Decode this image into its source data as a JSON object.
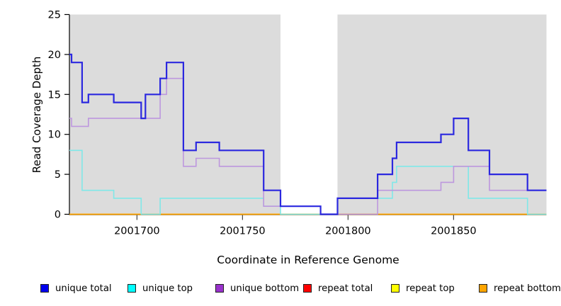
{
  "chart_data": {
    "type": "line",
    "subtype": "step",
    "title": "",
    "xlabel": "Coordinate in Reference Genome",
    "ylabel": "Read Coverage Depth",
    "xlim": [
      2001668,
      2001894
    ],
    "ylim": [
      0,
      25
    ],
    "xticks": [
      2001700,
      2001750,
      2001800,
      2001850
    ],
    "yticks": [
      0,
      5,
      10,
      15,
      20,
      25
    ],
    "grid": false,
    "legend_position": "bottom",
    "plot_bg": "#ffffff",
    "shaded_regions": [
      {
        "x0": 2001668,
        "x1": 2001768,
        "color": "#dcdcdc",
        "meaning": "unique region"
      },
      {
        "x0": 2001795,
        "x1": 2001894,
        "color": "#dcdcdc",
        "meaning": "unique region"
      }
    ],
    "series": [
      {
        "name": "unique total",
        "legend_color": "#0000ee",
        "line_color": "#2b28df",
        "line_width": 2.2,
        "steps": [
          [
            2001668,
            20
          ],
          [
            2001669,
            19
          ],
          [
            2001674,
            14
          ],
          [
            2001677,
            15
          ],
          [
            2001689,
            14
          ],
          [
            2001702,
            12
          ],
          [
            2001704,
            15
          ],
          [
            2001711,
            17
          ],
          [
            2001714,
            19
          ],
          [
            2001722,
            8
          ],
          [
            2001728,
            9
          ],
          [
            2001739,
            8
          ],
          [
            2001760,
            3
          ],
          [
            2001768,
            1
          ],
          [
            2001787,
            0
          ],
          [
            2001795,
            2
          ],
          [
            2001814,
            5
          ],
          [
            2001821,
            7
          ],
          [
            2001823,
            9
          ],
          [
            2001844,
            10
          ],
          [
            2001850,
            12
          ],
          [
            2001857,
            8
          ],
          [
            2001867,
            5
          ],
          [
            2001885,
            3
          ]
        ],
        "end_x": 2001894
      },
      {
        "name": "unique top",
        "legend_color": "#00ffff",
        "line_color": "#80e8e8",
        "line_width": 1.6,
        "steps": [
          [
            2001668,
            8
          ],
          [
            2001674,
            3
          ],
          [
            2001689,
            2
          ],
          [
            2001702,
            0
          ],
          [
            2001711,
            2
          ],
          [
            2001760,
            1
          ],
          [
            2001768,
            0
          ],
          [
            2001795,
            2
          ],
          [
            2001821,
            4
          ],
          [
            2001823,
            6
          ],
          [
            2001857,
            2
          ],
          [
            2001885,
            0
          ]
        ],
        "end_x": 2001894
      },
      {
        "name": "unique bottom",
        "legend_color": "#9932cc",
        "line_color": "#bd97de",
        "line_width": 1.6,
        "steps": [
          [
            2001668,
            12
          ],
          [
            2001669,
            11
          ],
          [
            2001677,
            12
          ],
          [
            2001711,
            15
          ],
          [
            2001714,
            17
          ],
          [
            2001722,
            6
          ],
          [
            2001728,
            7
          ],
          [
            2001739,
            6
          ],
          [
            2001760,
            1
          ],
          [
            2001787,
            0
          ],
          [
            2001814,
            3
          ],
          [
            2001844,
            4
          ],
          [
            2001850,
            6
          ],
          [
            2001867,
            3
          ]
        ],
        "end_x": 2001894
      },
      {
        "name": "repeat total",
        "legend_color": "#ff0000",
        "line_color": "#cc1111",
        "line_width": 1.2,
        "steps": [
          [
            2001668,
            0
          ]
        ],
        "end_x": 2001894
      },
      {
        "name": "repeat top",
        "legend_color": "#ffff00",
        "line_color": "#eeee00",
        "line_width": 1.2,
        "steps": [
          [
            2001668,
            0
          ]
        ],
        "end_x": 2001894
      },
      {
        "name": "repeat bottom",
        "legend_color": "#ffa500",
        "line_color": "#ffa500",
        "line_width": 1.8,
        "steps": [
          [
            2001668,
            0
          ]
        ],
        "end_x": 2001894
      }
    ]
  }
}
